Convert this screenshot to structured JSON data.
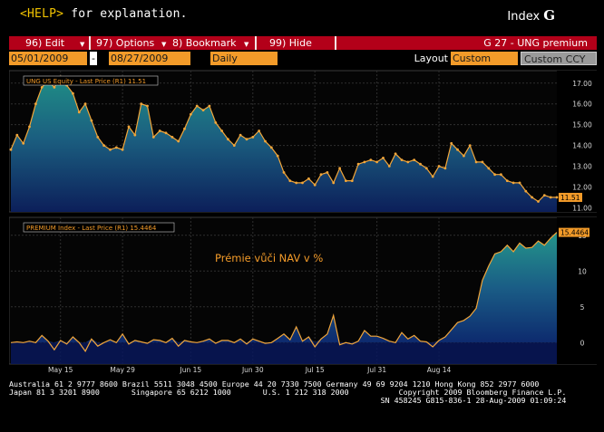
{
  "header": {
    "help_key": "<HELP>",
    "help_text": " for explanation.",
    "index_label": "Index",
    "index_key": "G"
  },
  "menu": {
    "items": [
      {
        "label": "96) Edit"
      },
      {
        "label": "97) Options"
      },
      {
        "label": "8) Bookmark"
      },
      {
        "label": "99) Hide"
      }
    ],
    "title": "G 27 - UNG premium"
  },
  "controls": {
    "start_date": "05/01/2009",
    "dash": "-",
    "end_date": "08/27/2009",
    "period": "Daily",
    "layout_label": "Layout",
    "layout_value": "Custom",
    "ccy": "Custom CCY"
  },
  "colors": {
    "accent_orange": "#f39b29",
    "menu_red": "#b30019",
    "area_teal": "#1f8a86",
    "area_blue": "#123a7a",
    "line": "#f2a63a"
  },
  "chart_data": [
    {
      "type": "area",
      "title": "UNG US Equity - Last Price (R1)  11.51",
      "last_value_label": "11.51",
      "ylim": [
        10.8,
        17.6
      ],
      "y_ticks": [
        "17.00",
        "16.00",
        "15.00",
        "14.00",
        "13.00",
        "12.00",
        "11.00"
      ],
      "y_tick_values": [
        17,
        16,
        15,
        14,
        13,
        12,
        11
      ],
      "x": [
        1,
        2,
        3,
        4,
        5,
        6,
        7,
        8,
        9,
        10,
        11,
        12,
        13,
        14,
        15,
        16,
        17,
        18,
        19,
        20,
        21,
        22,
        23,
        24,
        25,
        26,
        27,
        28,
        29,
        30,
        31,
        32,
        33,
        34,
        35,
        36,
        37,
        38,
        39,
        40,
        41,
        42,
        43,
        44,
        45,
        46,
        47,
        48,
        49,
        50,
        51,
        52,
        53,
        54,
        55,
        56,
        57,
        58,
        59,
        60,
        61,
        62,
        63,
        64,
        65,
        66,
        67,
        68,
        69,
        70,
        71,
        72,
        73,
        74,
        75,
        76,
        77,
        78,
        79,
        80,
        81,
        82,
        83,
        84,
        85,
        86,
        87,
        88,
        89
      ],
      "values": [
        13.8,
        14.5,
        14.1,
        14.9,
        16.0,
        16.8,
        17.1,
        16.8,
        17.3,
        16.9,
        16.5,
        15.6,
        16.0,
        15.2,
        14.4,
        14.0,
        13.8,
        13.9,
        13.8,
        14.9,
        14.5,
        16.0,
        15.9,
        14.4,
        14.7,
        14.6,
        14.4,
        14.2,
        14.8,
        15.5,
        15.9,
        15.7,
        15.9,
        15.1,
        14.7,
        14.3,
        14.0,
        14.5,
        14.3,
        14.4,
        14.7,
        14.2,
        13.9,
        13.5,
        12.7,
        12.3,
        12.2,
        12.2,
        12.4,
        12.1,
        12.6,
        12.7,
        12.2,
        12.9,
        12.3,
        12.3,
        13.1,
        13.2,
        13.3,
        13.2,
        13.4,
        13.0,
        13.6,
        13.3,
        13.2,
        13.3,
        13.1,
        12.9,
        12.5,
        13.0,
        12.9,
        14.1,
        13.8,
        13.5,
        14.0,
        13.2,
        13.2,
        12.9,
        12.6,
        12.6,
        12.3,
        12.2,
        12.2,
        11.8,
        11.5,
        11.3,
        11.6,
        11.5,
        11.5
      ]
    },
    {
      "type": "area",
      "title": "PREMIUM Index - Last Price (R1)  15.4464",
      "last_value_label": "15.4464",
      "annotation": "Prémie vůči NAV v %",
      "ylim": [
        -3,
        17.5
      ],
      "y_ticks": [
        "15",
        "10",
        "5",
        "0"
      ],
      "y_tick_values": [
        15,
        10,
        5,
        0
      ],
      "x_tick_labels": [
        "May 15",
        "May 29",
        "Jun 15",
        "Jun 30",
        "Jul 15",
        "Jul 31",
        "Aug 14"
      ],
      "x_tick_positions": [
        9,
        19,
        30,
        40,
        50,
        60,
        70
      ],
      "values": [
        0,
        0.1,
        0,
        0.2,
        0,
        1,
        0.2,
        -1,
        0.3,
        -0.2,
        0.8,
        0,
        -1.2,
        0.5,
        -0.5,
        0,
        0.4,
        0,
        1.2,
        -0.2,
        0.3,
        0.1,
        -0.1,
        0.4,
        0.3,
        0,
        0.6,
        -0.5,
        0.3,
        0.1,
        0,
        0.2,
        0.5,
        -0.1,
        0.3,
        0.3,
        0,
        0.5,
        -0.2,
        0.5,
        0.2,
        -0.1,
        0,
        0.6,
        1.2,
        0.4,
        2.2,
        0.2,
        0.8,
        -0.6,
        0.5,
        1.2,
        3.8,
        -0.3,
        0,
        -0.2,
        0.2,
        1.7,
        0.9,
        0.9,
        0.6,
        0.2,
        0,
        1.4,
        0.5,
        1.0,
        0.2,
        0.1,
        -0.6,
        0.3,
        0.8,
        1.8,
        2.8,
        3.1,
        3.7,
        4.8,
        8.7,
        10.7,
        12.4,
        12.7,
        13.6,
        12.7,
        13.9,
        13.2,
        13.3,
        14.2,
        13.6,
        14.6,
        15.4
      ]
    }
  ],
  "footer": {
    "line1": "Australia 61 2 9777 8600 Brazil 5511 3048 4500 Europe 44 20 7330 7500 Germany 49 69 9204 1210 Hong Kong 852 2977 6000",
    "line2": "Japan 81 3 3201 8900       Singapore 65 6212 1000       U.S. 1 212 318 2000           Copyright 2009 Bloomberg Finance L.P.",
    "line3": "                                                                                  SN 458245 G815-836-1 28-Aug-2009 01:09:24"
  }
}
